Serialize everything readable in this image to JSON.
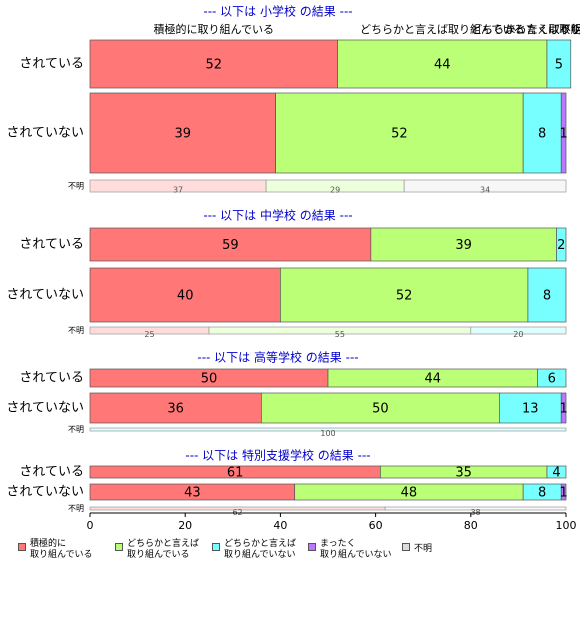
{
  "chart_data": {
    "type": "bar",
    "orientation": "horizontal",
    "stacked": true,
    "header_labels": [
      "積極的に取り組んでいる",
      "どちらかと言えば取り組んでいる",
      "どちらかと言えば取り組んでいない",
      "まったく取り組んでいない",
      "不明"
    ],
    "series": [
      {
        "name": "積極的に\n取り組んでいる",
        "color": "#ff7777"
      },
      {
        "name": "どちらかと言えば\n取り組んでいる",
        "color": "#bbff77"
      },
      {
        "name": "どちらかと言えば\n取り組んでいない",
        "color": "#77ffff"
      },
      {
        "name": "まったく\n取り組んでいない",
        "color": "#bb77ff"
      },
      {
        "name": "不明",
        "color": "#dddddd"
      }
    ],
    "panels": [
      {
        "title": "--- 以下は 小学校 の結果 ---",
        "categories": [
          "されている",
          "されていない",
          "不明"
        ],
        "values": [
          [
            52,
            44,
            5,
            0,
            0
          ],
          [
            39,
            52,
            8,
            1,
            0
          ],
          [
            37,
            29,
            0,
            0,
            34
          ]
        ]
      },
      {
        "title": "--- 以下は 中学校 の結果 ---",
        "categories": [
          "されている",
          "されていない",
          "不明"
        ],
        "values": [
          [
            59,
            39,
            2,
            0,
            0
          ],
          [
            40,
            52,
            8,
            0,
            0
          ],
          [
            25,
            55,
            20,
            0,
            0
          ]
        ]
      },
      {
        "title": "--- 以下は 高等学校 の結果 ---",
        "categories": [
          "されている",
          "されていない",
          "不明"
        ],
        "values": [
          [
            50,
            44,
            6,
            0,
            0
          ],
          [
            36,
            50,
            13,
            1,
            0
          ],
          [
            0,
            0,
            100,
            0,
            0
          ]
        ]
      },
      {
        "title": "--- 以下は 特別支援学校 の結果 ---",
        "categories": [
          "されている",
          "されていない",
          "不明"
        ],
        "values": [
          [
            61,
            35,
            4,
            0,
            0
          ],
          [
            43,
            48,
            8,
            1,
            0
          ],
          [
            62,
            0,
            0,
            0,
            38
          ]
        ]
      }
    ],
    "xlim": [
      0,
      100
    ],
    "xticks": [
      0,
      20,
      40,
      60,
      80,
      100
    ]
  }
}
